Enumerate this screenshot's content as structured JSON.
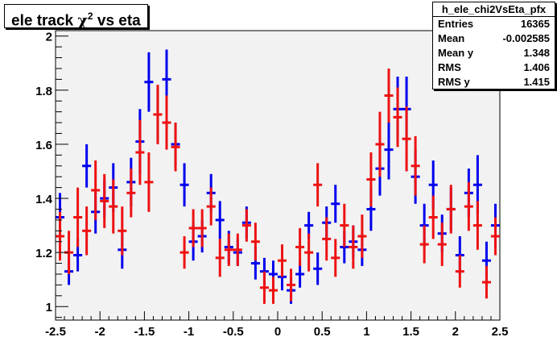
{
  "title": {
    "text": "ele track",
    "chi": "χ",
    "sup": "2",
    "rest": " vs eta"
  },
  "stats": {
    "name": "h_ele_chi2VsEta_pfx",
    "rows": [
      {
        "key": "Entries",
        "value": "16365"
      },
      {
        "key": "Mean",
        "value": "-0.002585"
      },
      {
        "key": "Mean y",
        "value": "1.348"
      },
      {
        "key": "RMS",
        "value": "1.406"
      },
      {
        "key": "RMS y",
        "value": "1.415"
      }
    ]
  },
  "colors": {
    "frame_bg": "#f2f2f2",
    "series_blue": "#0000ee",
    "series_red": "#ee1111",
    "axis": "#000000"
  },
  "chart_data": {
    "type": "scatter",
    "title": "ele track χ² vs eta",
    "xlabel": "",
    "ylabel": "",
    "xlim": [
      -2.5,
      2.5
    ],
    "ylim": [
      0.95,
      2.02
    ],
    "x_ticks": [
      -2.5,
      -2,
      -1.5,
      -1,
      -0.5,
      0,
      0.5,
      1,
      1.5,
      2,
      2.5
    ],
    "x_tick_labels": [
      "-2.5",
      "-2",
      "-1.5",
      "-1",
      "-0.5",
      "0",
      "0.5",
      "1",
      "1.5",
      "2",
      "2.5"
    ],
    "y_ticks": [
      1,
      1.2,
      1.4,
      1.6,
      1.8,
      2
    ],
    "y_tick_labels": [
      "1",
      "1.2",
      "1.4",
      "1.6",
      "1.8",
      "2"
    ],
    "grid": false,
    "bin_half_width": 0.05,
    "series": [
      {
        "color": "blue",
        "points": [
          {
            "x": -2.45,
            "y": 1.33,
            "err": 0.09
          },
          {
            "x": -2.35,
            "y": 1.13,
            "err": 0.05
          },
          {
            "x": -2.25,
            "y": 1.19,
            "err": 0.06
          },
          {
            "x": -2.15,
            "y": 1.52,
            "err": 0.08
          },
          {
            "x": -2.05,
            "y": 1.35,
            "err": 0.08
          },
          {
            "x": -1.95,
            "y": 1.4,
            "err": 0.07
          },
          {
            "x": -1.85,
            "y": 1.44,
            "err": 0.09
          },
          {
            "x": -1.75,
            "y": 1.21,
            "err": 0.07
          },
          {
            "x": -1.65,
            "y": 1.46,
            "err": 0.09
          },
          {
            "x": -1.55,
            "y": 1.61,
            "err": 0.12
          },
          {
            "x": -1.45,
            "y": 1.83,
            "err": 0.11
          },
          {
            "x": -1.35,
            "y": 1.71,
            "err": 0.1
          },
          {
            "x": -1.25,
            "y": 1.84,
            "err": 0.11
          },
          {
            "x": -1.15,
            "y": 1.6,
            "err": 0.08
          },
          {
            "x": -1.05,
            "y": 1.45,
            "err": 0.08
          },
          {
            "x": -0.95,
            "y": 1.24,
            "err": 0.07
          },
          {
            "x": -0.85,
            "y": 1.26,
            "err": 0.06
          },
          {
            "x": -0.75,
            "y": 1.42,
            "err": 0.07
          },
          {
            "x": -0.65,
            "y": 1.32,
            "err": 0.07
          },
          {
            "x": -0.55,
            "y": 1.22,
            "err": 0.06
          },
          {
            "x": -0.45,
            "y": 1.2,
            "err": 0.05
          },
          {
            "x": -0.35,
            "y": 1.31,
            "err": 0.06
          },
          {
            "x": -0.25,
            "y": 1.16,
            "err": 0.06
          },
          {
            "x": -0.15,
            "y": 1.13,
            "err": 0.05
          },
          {
            "x": -0.05,
            "y": 1.12,
            "err": 0.05
          },
          {
            "x": 0.05,
            "y": 1.11,
            "err": 0.05
          },
          {
            "x": 0.15,
            "y": 1.06,
            "err": 0.05
          },
          {
            "x": 0.25,
            "y": 1.12,
            "err": 0.05
          },
          {
            "x": 0.35,
            "y": 1.3,
            "err": 0.05
          },
          {
            "x": 0.45,
            "y": 1.14,
            "err": 0.06
          },
          {
            "x": 0.55,
            "y": 1.31,
            "err": 0.06
          },
          {
            "x": 0.65,
            "y": 1.38,
            "err": 0.07
          },
          {
            "x": 0.75,
            "y": 1.22,
            "err": 0.06
          },
          {
            "x": 0.85,
            "y": 1.24,
            "err": 0.06
          },
          {
            "x": 0.95,
            "y": 1.21,
            "err": 0.06
          },
          {
            "x": 1.05,
            "y": 1.36,
            "err": 0.08
          },
          {
            "x": 1.15,
            "y": 1.51,
            "err": 0.1
          },
          {
            "x": 1.25,
            "y": 1.58,
            "err": 0.11
          },
          {
            "x": 1.35,
            "y": 1.73,
            "err": 0.12
          },
          {
            "x": 1.45,
            "y": 1.73,
            "err": 0.12
          },
          {
            "x": 1.55,
            "y": 1.48,
            "err": 0.1
          },
          {
            "x": 1.65,
            "y": 1.3,
            "err": 0.08
          },
          {
            "x": 1.75,
            "y": 1.45,
            "err": 0.09
          },
          {
            "x": 1.85,
            "y": 1.27,
            "err": 0.07
          },
          {
            "x": 1.95,
            "y": 1.36,
            "err": 0.08
          },
          {
            "x": 2.05,
            "y": 1.19,
            "err": 0.07
          },
          {
            "x": 2.15,
            "y": 1.42,
            "err": 0.09
          },
          {
            "x": 2.25,
            "y": 1.45,
            "err": 0.11
          },
          {
            "x": 2.35,
            "y": 1.17,
            "err": 0.07
          },
          {
            "x": 2.45,
            "y": 1.3,
            "err": 0.08
          }
        ]
      },
      {
        "color": "red",
        "points": [
          {
            "x": -2.45,
            "y": 1.26,
            "err": 0.09
          },
          {
            "x": -2.35,
            "y": 1.2,
            "err": 0.08
          },
          {
            "x": -2.25,
            "y": 1.33,
            "err": 0.11
          },
          {
            "x": -2.15,
            "y": 1.28,
            "err": 0.09
          },
          {
            "x": -2.05,
            "y": 1.43,
            "err": 0.11
          },
          {
            "x": -1.95,
            "y": 1.39,
            "err": 0.1
          },
          {
            "x": -1.85,
            "y": 1.37,
            "err": 0.1
          },
          {
            "x": -1.75,
            "y": 1.28,
            "err": 0.09
          },
          {
            "x": -1.65,
            "y": 1.42,
            "err": 0.09
          },
          {
            "x": -1.55,
            "y": 1.57,
            "err": 0.12
          },
          {
            "x": -1.45,
            "y": 1.46,
            "err": 0.11
          },
          {
            "x": -1.35,
            "y": 1.71,
            "err": 0.11
          },
          {
            "x": -1.25,
            "y": 1.68,
            "err": 0.1
          },
          {
            "x": -1.15,
            "y": 1.59,
            "err": 0.09
          },
          {
            "x": -1.05,
            "y": 1.2,
            "err": 0.06
          },
          {
            "x": -0.95,
            "y": 1.29,
            "err": 0.07
          },
          {
            "x": -0.85,
            "y": 1.29,
            "err": 0.07
          },
          {
            "x": -0.75,
            "y": 1.37,
            "err": 0.07
          },
          {
            "x": -0.65,
            "y": 1.18,
            "err": 0.07
          },
          {
            "x": -0.55,
            "y": 1.21,
            "err": 0.06
          },
          {
            "x": -0.45,
            "y": 1.21,
            "err": 0.06
          },
          {
            "x": -0.35,
            "y": 1.3,
            "err": 0.06
          },
          {
            "x": -0.25,
            "y": 1.24,
            "err": 0.07
          },
          {
            "x": -0.15,
            "y": 1.07,
            "err": 0.06
          },
          {
            "x": -0.05,
            "y": 1.06,
            "err": 0.05
          },
          {
            "x": 0.05,
            "y": 1.17,
            "err": 0.06
          },
          {
            "x": 0.15,
            "y": 1.08,
            "err": 0.06
          },
          {
            "x": 0.25,
            "y": 1.22,
            "err": 0.07
          },
          {
            "x": 0.35,
            "y": 1.2,
            "err": 0.07
          },
          {
            "x": 0.45,
            "y": 1.45,
            "err": 0.08
          },
          {
            "x": 0.55,
            "y": 1.25,
            "err": 0.08
          },
          {
            "x": 0.65,
            "y": 1.18,
            "err": 0.07
          },
          {
            "x": 0.75,
            "y": 1.3,
            "err": 0.08
          },
          {
            "x": 0.85,
            "y": 1.22,
            "err": 0.08
          },
          {
            "x": 0.95,
            "y": 1.26,
            "err": 0.08
          },
          {
            "x": 1.05,
            "y": 1.47,
            "err": 0.1
          },
          {
            "x": 1.15,
            "y": 1.6,
            "err": 0.12
          },
          {
            "x": 1.25,
            "y": 1.78,
            "err": 0.1
          },
          {
            "x": 1.35,
            "y": 1.7,
            "err": 0.11
          },
          {
            "x": 1.45,
            "y": 1.62,
            "err": 0.12
          },
          {
            "x": 1.55,
            "y": 1.52,
            "err": 0.11
          },
          {
            "x": 1.65,
            "y": 1.23,
            "err": 0.07
          },
          {
            "x": 1.75,
            "y": 1.33,
            "err": 0.08
          },
          {
            "x": 1.85,
            "y": 1.23,
            "err": 0.08
          },
          {
            "x": 1.95,
            "y": 1.36,
            "err": 0.09
          },
          {
            "x": 2.05,
            "y": 1.13,
            "err": 0.06
          },
          {
            "x": 2.15,
            "y": 1.37,
            "err": 0.09
          },
          {
            "x": 2.25,
            "y": 1.3,
            "err": 0.09
          },
          {
            "x": 2.35,
            "y": 1.09,
            "err": 0.06
          },
          {
            "x": 2.45,
            "y": 1.26,
            "err": 0.07
          }
        ]
      }
    ]
  }
}
